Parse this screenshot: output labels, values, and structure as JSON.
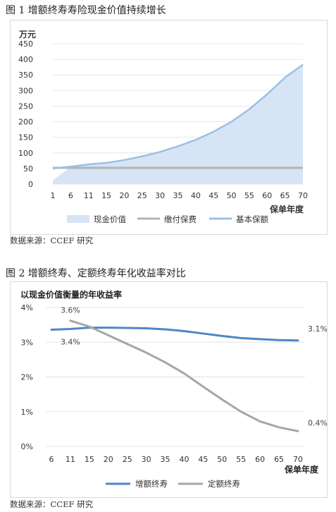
{
  "figure1": {
    "title": "图 1  增额终寿寿险现金价值持续增长",
    "source": "数据来源：CCEF 研究"
  },
  "figure2": {
    "title": "图 2  增额终寿、定额终寿年化收益率对比",
    "source": "数据来源：CCEF 研究"
  },
  "colors": {
    "cash_value_fill": "#d6e4f5",
    "cash_value_line": "#9dbfe3",
    "premium_line": "#b3b3b3",
    "increasing_line": "#4f86c6",
    "fixed_line": "#a6a6a6"
  },
  "chart_data": [
    {
      "type": "area",
      "ylabel": "万元",
      "xlabel": "保单年度",
      "ylim": [
        0,
        450
      ],
      "yticks": [
        0,
        50,
        100,
        150,
        200,
        250,
        300,
        350,
        400,
        450
      ],
      "x": [
        1,
        6,
        11,
        15,
        20,
        25,
        30,
        35,
        40,
        45,
        50,
        55,
        60,
        65,
        70
      ],
      "grid": true,
      "legend_position": "bottom",
      "series": [
        {
          "name": "现金价值",
          "style": "area",
          "values": [
            12,
            55,
            60,
            66,
            75,
            87,
            102,
            120,
            141,
            168,
            200,
            240,
            288,
            342,
            383
          ]
        },
        {
          "name": "缴付保费",
          "style": "line",
          "values": [
            52,
            52,
            52,
            52,
            52,
            52,
            52,
            52,
            52,
            52,
            52,
            52,
            52,
            52,
            52
          ]
        },
        {
          "name": "基本保额",
          "style": "line",
          "values": [
            50,
            56,
            63,
            68,
            77,
            89,
            103,
            121,
            142,
            168,
            200,
            240,
            288,
            342,
            383
          ]
        }
      ]
    },
    {
      "type": "line",
      "title": "以现金价值衡量的年收益率",
      "xlabel": "保单年度",
      "ylim": [
        0,
        4
      ],
      "yticks": [
        "0%",
        "1%",
        "2%",
        "3%",
        "4%"
      ],
      "x": [
        6,
        11,
        15,
        20,
        25,
        30,
        35,
        40,
        45,
        50,
        55,
        60,
        65,
        70
      ],
      "grid": true,
      "legend_position": "bottom",
      "series": [
        {
          "name": "增额终寿",
          "values": [
            3.36,
            3.38,
            3.42,
            3.42,
            3.41,
            3.4,
            3.37,
            3.32,
            3.25,
            3.18,
            3.12,
            3.09,
            3.06,
            3.05
          ]
        },
        {
          "name": "定额终寿",
          "values": [
            null,
            3.62,
            3.45,
            3.2,
            2.95,
            2.7,
            2.42,
            2.1,
            1.72,
            1.35,
            1.0,
            0.72,
            0.55,
            0.44
          ]
        }
      ],
      "data_labels": [
        {
          "series": "定额终寿",
          "x": 11,
          "text": "3.6%"
        },
        {
          "series": "增额终寿",
          "x": 11,
          "text": "3.4%"
        },
        {
          "series": "增额终寿",
          "x": 70,
          "text": "3.1%"
        },
        {
          "series": "定额终寿",
          "x": 70,
          "text": "0.4%"
        }
      ]
    }
  ]
}
